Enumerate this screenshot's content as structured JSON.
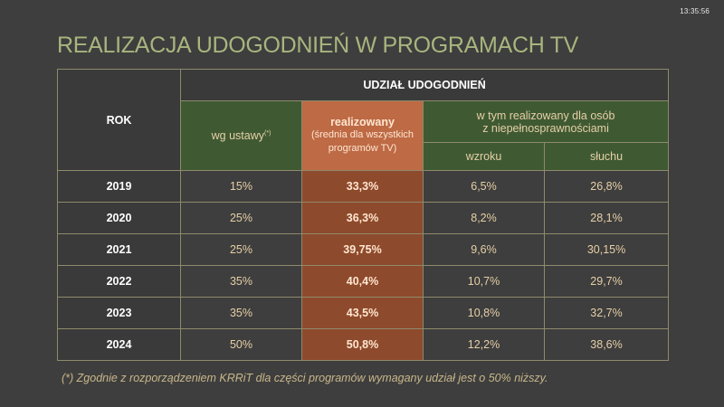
{
  "clock": "13:35:56",
  "title": "REALIZACJA UDOGODNIEŃ W PROGRAMACH TV",
  "table": {
    "rok_header": "ROK",
    "group_header": "UDZIAŁ UDOGODNIEŃ",
    "wg_ustawy": "wg ustawy",
    "wg_ustawy_sup": "(*)",
    "realizowany_title": "realizowany",
    "realizowany_sub_1": "(średnia dla wszystkich",
    "realizowany_sub_2": "programów TV)",
    "disabled_header_1": "w tym realizowany dla osób",
    "disabled_header_2": "z niepełnosprawnościami",
    "wzroku": "wzroku",
    "sluchu": "słuchu",
    "rows": [
      {
        "year": "2019",
        "ustawy": "15%",
        "realizowany": "33,3%",
        "wzroku": "6,5%",
        "sluchu": "26,8%"
      },
      {
        "year": "2020",
        "ustawy": "25%",
        "realizowany": "36,3%",
        "wzroku": "8,2%",
        "sluchu": "28,1%"
      },
      {
        "year": "2021",
        "ustawy": "25%",
        "realizowany": "39,75%",
        "wzroku": "9,6%",
        "sluchu": "30,15%"
      },
      {
        "year": "2022",
        "ustawy": "35%",
        "realizowany": "40,4%",
        "wzroku": "10,7%",
        "sluchu": "29,7%"
      },
      {
        "year": "2023",
        "ustawy": "35%",
        "realizowany": "43,5%",
        "wzroku": "10,8%",
        "sluchu": "32,7%"
      },
      {
        "year": "2024",
        "ustawy": "50%",
        "realizowany": "50,8%",
        "wzroku": "12,2%",
        "sluchu": "38,6%"
      }
    ]
  },
  "footnote": "(*) Zgodnie z rozporządzeniem KRRiT dla części programów wymagany udział jest o 50% niższy."
}
